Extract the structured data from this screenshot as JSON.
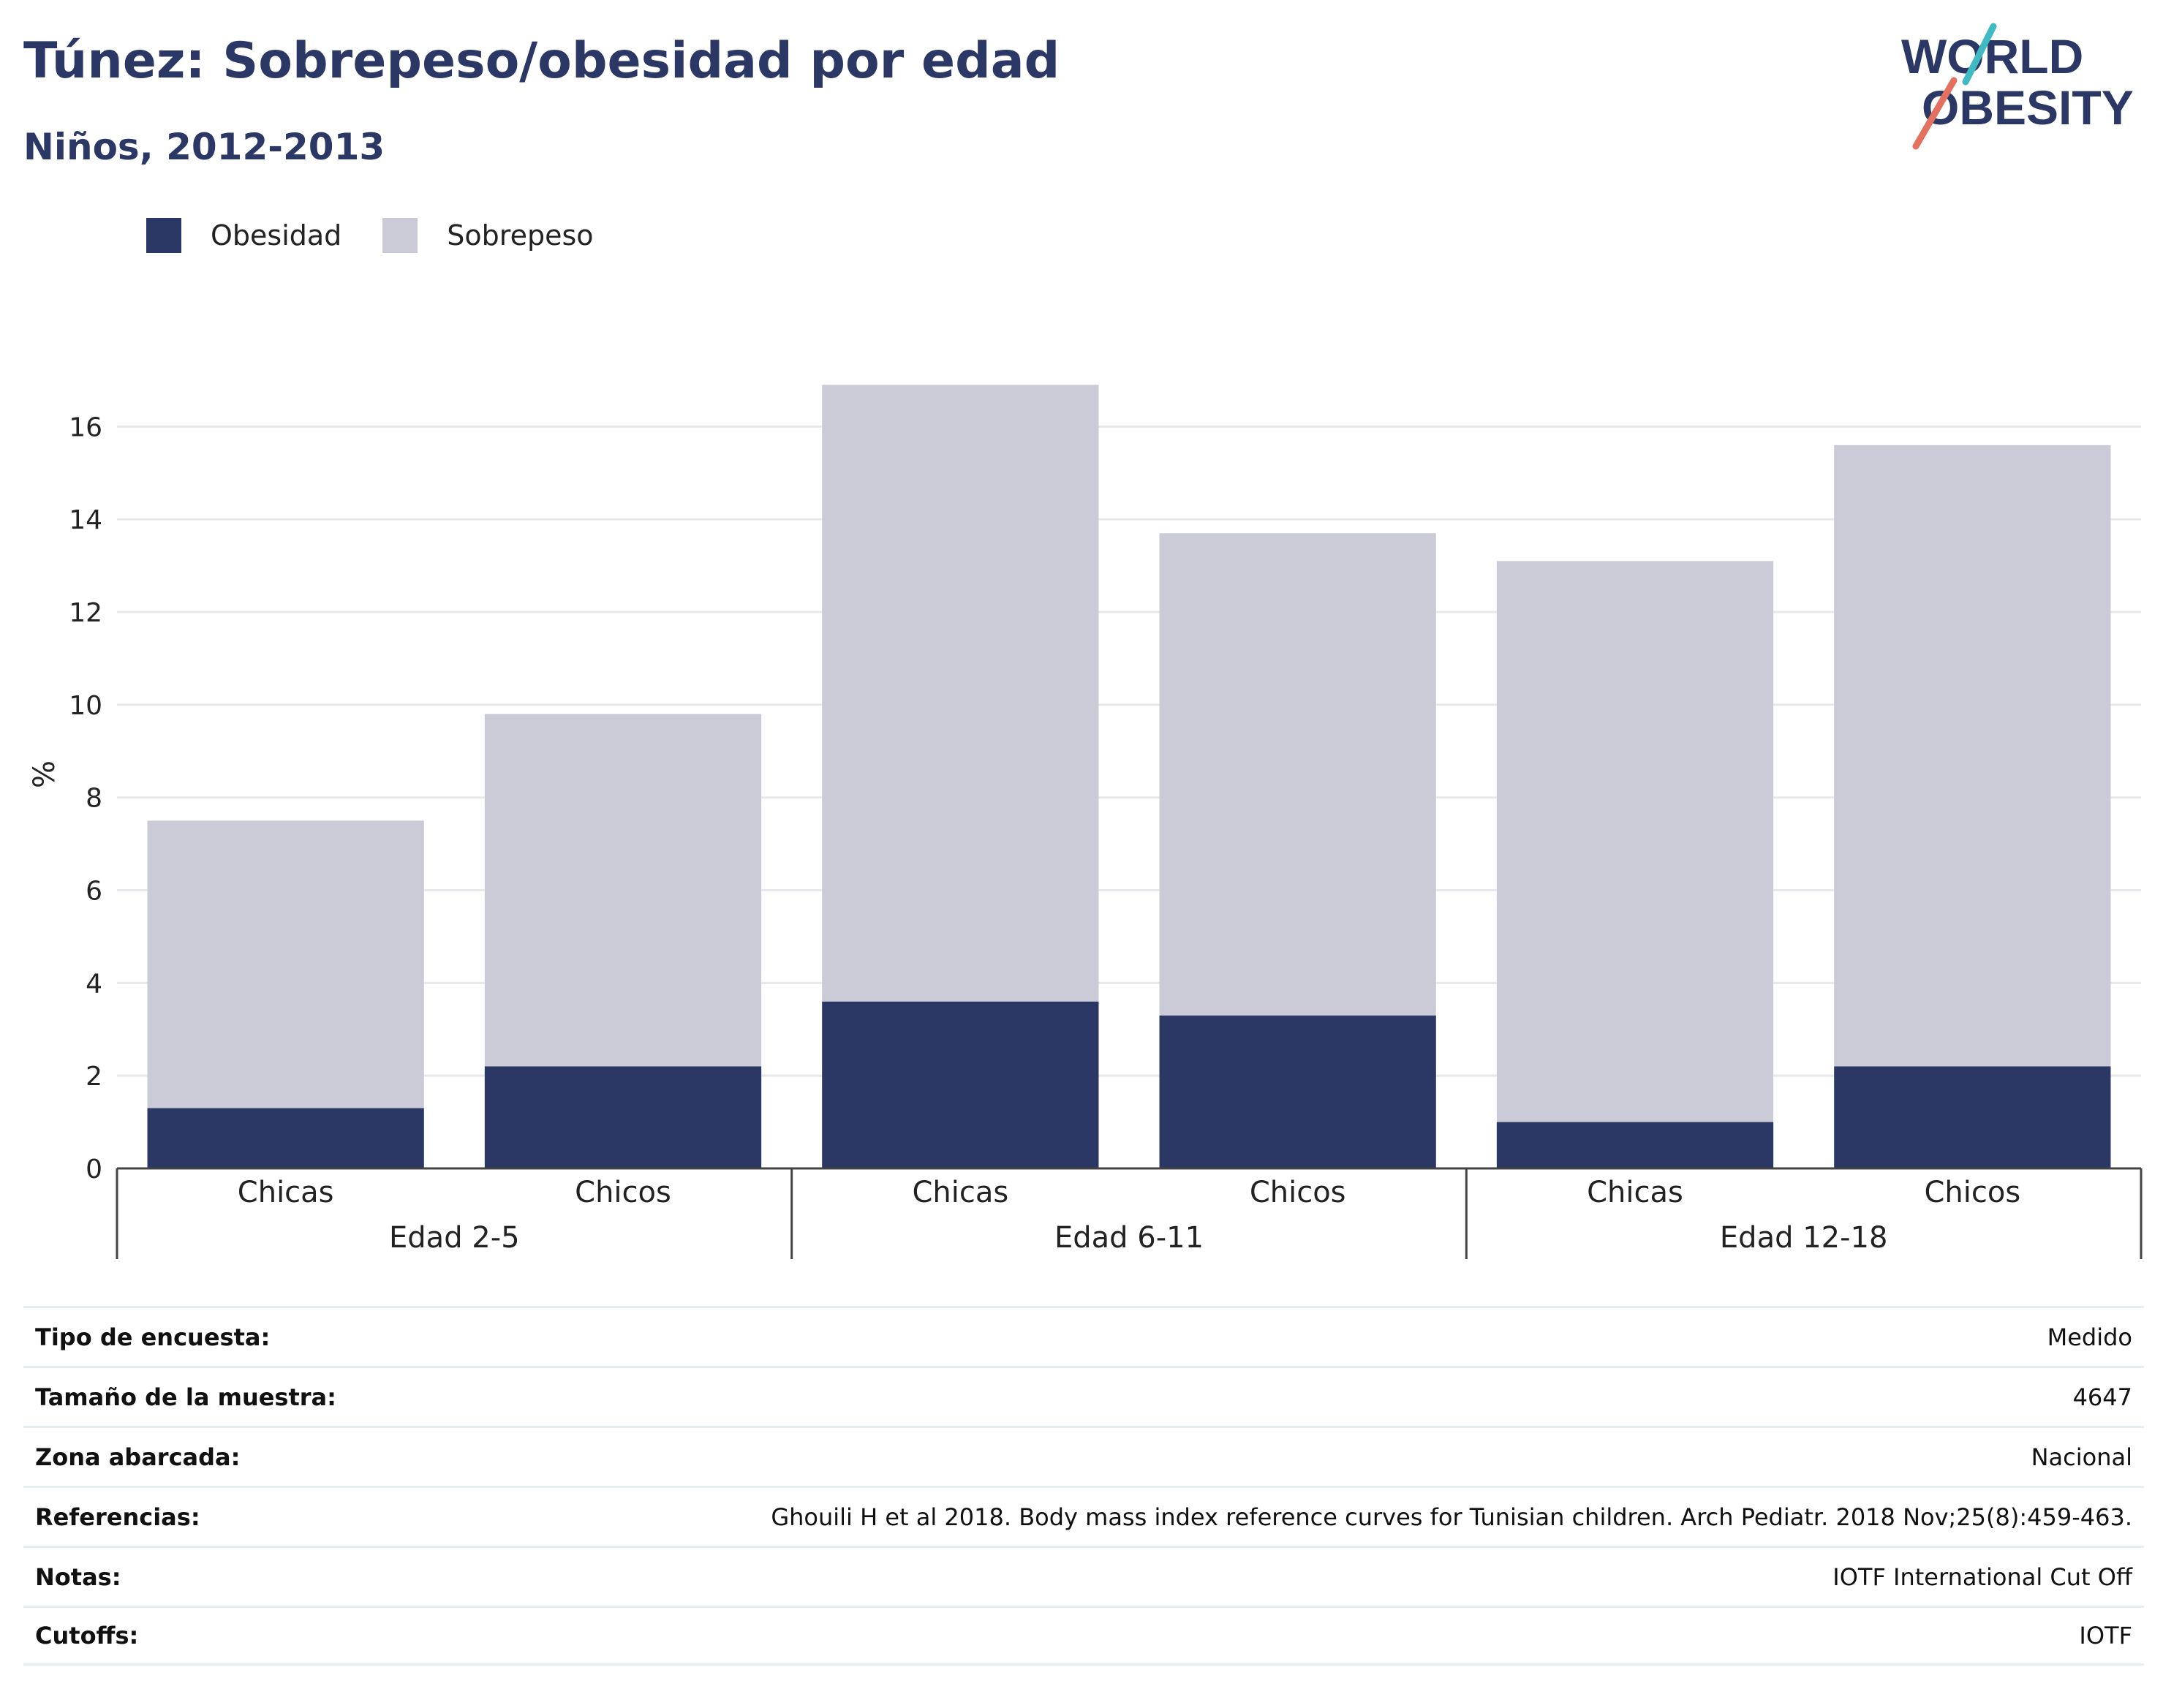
{
  "header": {
    "title": "Túnez: Sobrepeso/obesidad por edad",
    "subtitle": "Niños, 2012-2013"
  },
  "logo": {
    "line1": "WORLD",
    "line2": "OBESITY",
    "color": "#2b3765",
    "accent_teal": "#3fb9c2",
    "accent_coral": "#e4715f"
  },
  "colors": {
    "obesidad": "#2b3765",
    "sobrepeso": "#cacbd7",
    "grid": "#e8e8ec",
    "axis": "#444444"
  },
  "chart_data": {
    "type": "bar",
    "stacked": true,
    "title": "",
    "xlabel": "",
    "ylabel": "%",
    "ylim": [
      0,
      17
    ],
    "yticks": [
      0,
      2,
      4,
      6,
      8,
      10,
      12,
      14,
      16
    ],
    "grid": true,
    "legend_position": "top-left",
    "groups": [
      {
        "label": "Edad 2-5",
        "categories": [
          "Chicas",
          "Chicos"
        ]
      },
      {
        "label": "Edad 6-11",
        "categories": [
          "Chicas",
          "Chicos"
        ]
      },
      {
        "label": "Edad 12-18",
        "categories": [
          "Chicas",
          "Chicos"
        ]
      }
    ],
    "categories": [
      "Chicas",
      "Chicos",
      "Chicas",
      "Chicos",
      "Chicas",
      "Chicos"
    ],
    "series": [
      {
        "name": "Obesidad",
        "values": [
          1.3,
          2.2,
          3.6,
          3.3,
          1.0,
          2.2
        ]
      },
      {
        "name": "Sobrepeso",
        "values": [
          6.2,
          7.6,
          13.3,
          10.4,
          12.1,
          13.4
        ]
      }
    ]
  },
  "info": [
    {
      "label": "Tipo de encuesta:",
      "value": "Medido"
    },
    {
      "label": "Tamaño de la muestra:",
      "value": "4647"
    },
    {
      "label": "Zona abarcada:",
      "value": "Nacional"
    },
    {
      "label": "Referencias:",
      "value": "Ghouili H et al 2018. Body mass index reference curves for Tunisian children. Arch Pediatr. 2018 Nov;25(8):459-463."
    },
    {
      "label": "Notas:",
      "value": "IOTF International Cut Off"
    },
    {
      "label": "Cutoffs:",
      "value": "IOTF"
    }
  ]
}
